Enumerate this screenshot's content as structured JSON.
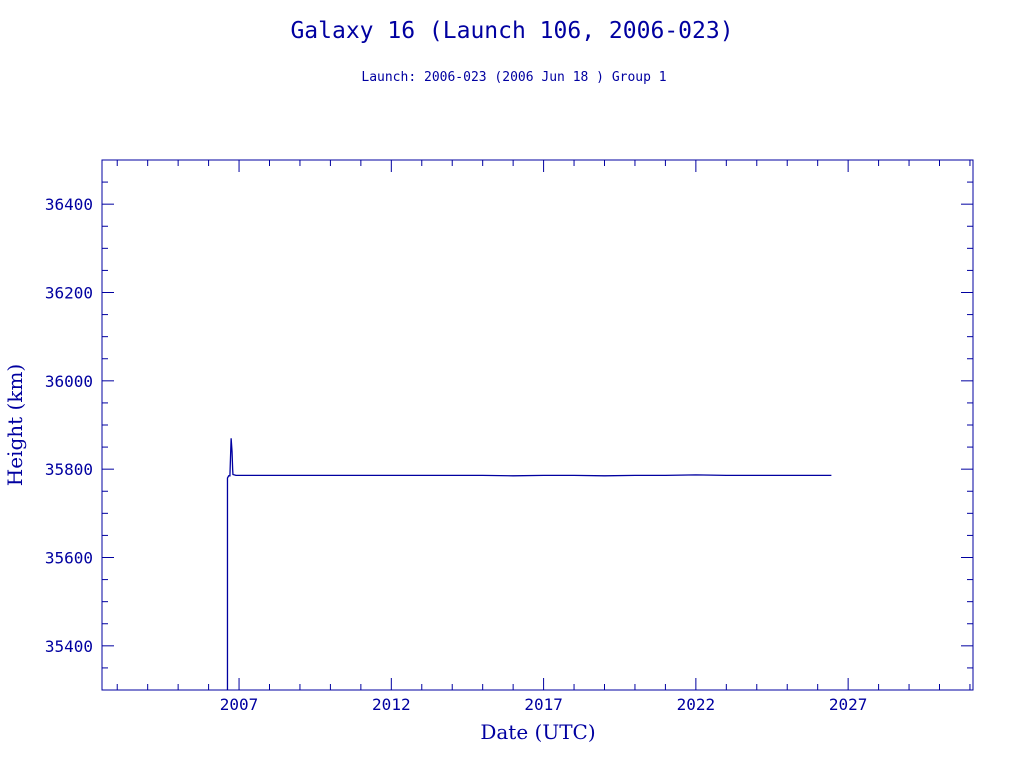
{
  "chart_data": {
    "type": "line",
    "title": "Galaxy 16 (Launch 106, 2006-023)",
    "subtitle": "Launch: 2006-023  (2006 Jun 18 )  Group 1",
    "xlabel": "Date (UTC)",
    "ylabel": "Height (km)",
    "xlim": [
      2002.5,
      2031.1
    ],
    "ylim": [
      35300,
      36500
    ],
    "xticks": [
      2007,
      2012,
      2017,
      2022,
      2027
    ],
    "xtick_labels": [
      "2007",
      "2012",
      "2017",
      "2022",
      "2027"
    ],
    "yticks": [
      35400,
      35600,
      35800,
      36000,
      36200,
      36400
    ],
    "ytick_labels": [
      "35400",
      "35600",
      "35800",
      "36000",
      "36200",
      "36400"
    ],
    "grid": false,
    "colors": {
      "axis": "#0000a0",
      "line": "#0000a0",
      "background": "#ffffff"
    },
    "series": [
      {
        "points": [
          [
            2006.62,
            35300
          ],
          [
            2006.62,
            35780
          ],
          [
            2006.66,
            35785
          ],
          [
            2006.7,
            35785
          ],
          [
            2006.74,
            35870
          ],
          [
            2006.77,
            35840
          ],
          [
            2006.79,
            35800
          ],
          [
            2006.8,
            35788
          ],
          [
            2006.9,
            35786
          ],
          [
            2007.2,
            35786
          ],
          [
            2008,
            35786
          ],
          [
            2009,
            35786
          ],
          [
            2010,
            35786
          ],
          [
            2011,
            35786
          ],
          [
            2012,
            35786
          ],
          [
            2013,
            35786
          ],
          [
            2014,
            35786
          ],
          [
            2015,
            35786
          ],
          [
            2016,
            35785
          ],
          [
            2017,
            35786
          ],
          [
            2018,
            35786
          ],
          [
            2019,
            35785
          ],
          [
            2020,
            35786
          ],
          [
            2021,
            35786
          ],
          [
            2022,
            35787
          ],
          [
            2023,
            35786
          ],
          [
            2024,
            35786
          ],
          [
            2025,
            35786
          ],
          [
            2026,
            35786
          ],
          [
            2026.45,
            35786
          ]
        ]
      }
    ]
  }
}
